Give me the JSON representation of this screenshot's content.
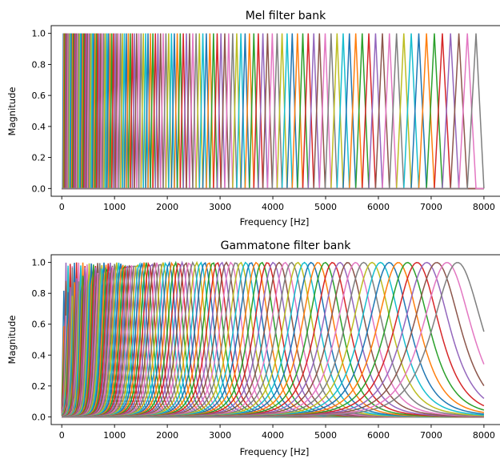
{
  "palette": [
    "#1f77b4",
    "#ff7f0e",
    "#2ca02c",
    "#d62728",
    "#9467bd",
    "#8c564b",
    "#e377c2",
    "#7f7f7f",
    "#bcbd22",
    "#17becf"
  ],
  "chart_data": [
    {
      "type": "line",
      "title": "Mel filter bank",
      "xlabel": "Frequency [Hz]",
      "ylabel": "Magnitude",
      "xlim": [
        -200,
        8350
      ],
      "ylim": [
        -0.05,
        1.05
      ],
      "xticks": [
        0,
        1000,
        2000,
        3000,
        4000,
        5000,
        6000,
        7000,
        8000
      ],
      "yticks": [
        0.0,
        0.2,
        0.4,
        0.6,
        0.8,
        1.0
      ],
      "xtick_labels": [
        "0",
        "1000",
        "2000",
        "3000",
        "4000",
        "5000",
        "6000",
        "7000",
        "8000"
      ],
      "ytick_labels": [
        "0.0",
        "0.2",
        "0.4",
        "0.6",
        "0.8",
        "1.0"
      ],
      "grid": false,
      "filter_shape": "triangular",
      "n_filters": 128,
      "fmin": 0,
      "fmax": 8000,
      "peak_magnitude": 1.0,
      "first_peak_hz": 30,
      "last_peak_hz": 7850
    },
    {
      "type": "line",
      "title": "Gammatone filter bank",
      "xlabel": "Frequency [Hz]",
      "ylabel": "Magnitude",
      "xlim": [
        -200,
        8350
      ],
      "ylim": [
        -0.05,
        1.05
      ],
      "xticks": [
        0,
        1000,
        2000,
        3000,
        4000,
        5000,
        6000,
        7000,
        8000
      ],
      "yticks": [
        0.0,
        0.2,
        0.4,
        0.6,
        0.8,
        1.0
      ],
      "xtick_labels": [
        "0",
        "1000",
        "2000",
        "3000",
        "4000",
        "5000",
        "6000",
        "7000",
        "8000"
      ],
      "ytick_labels": [
        "0.0",
        "0.2",
        "0.4",
        "0.6",
        "0.8",
        "1.0"
      ],
      "grid": false,
      "filter_shape": "gammatone",
      "n_filters": 128,
      "fmin": 0,
      "fmax": 8000,
      "peak_magnitude": 1.0,
      "first_center_hz": 50,
      "last_center_hz": 7500
    }
  ]
}
